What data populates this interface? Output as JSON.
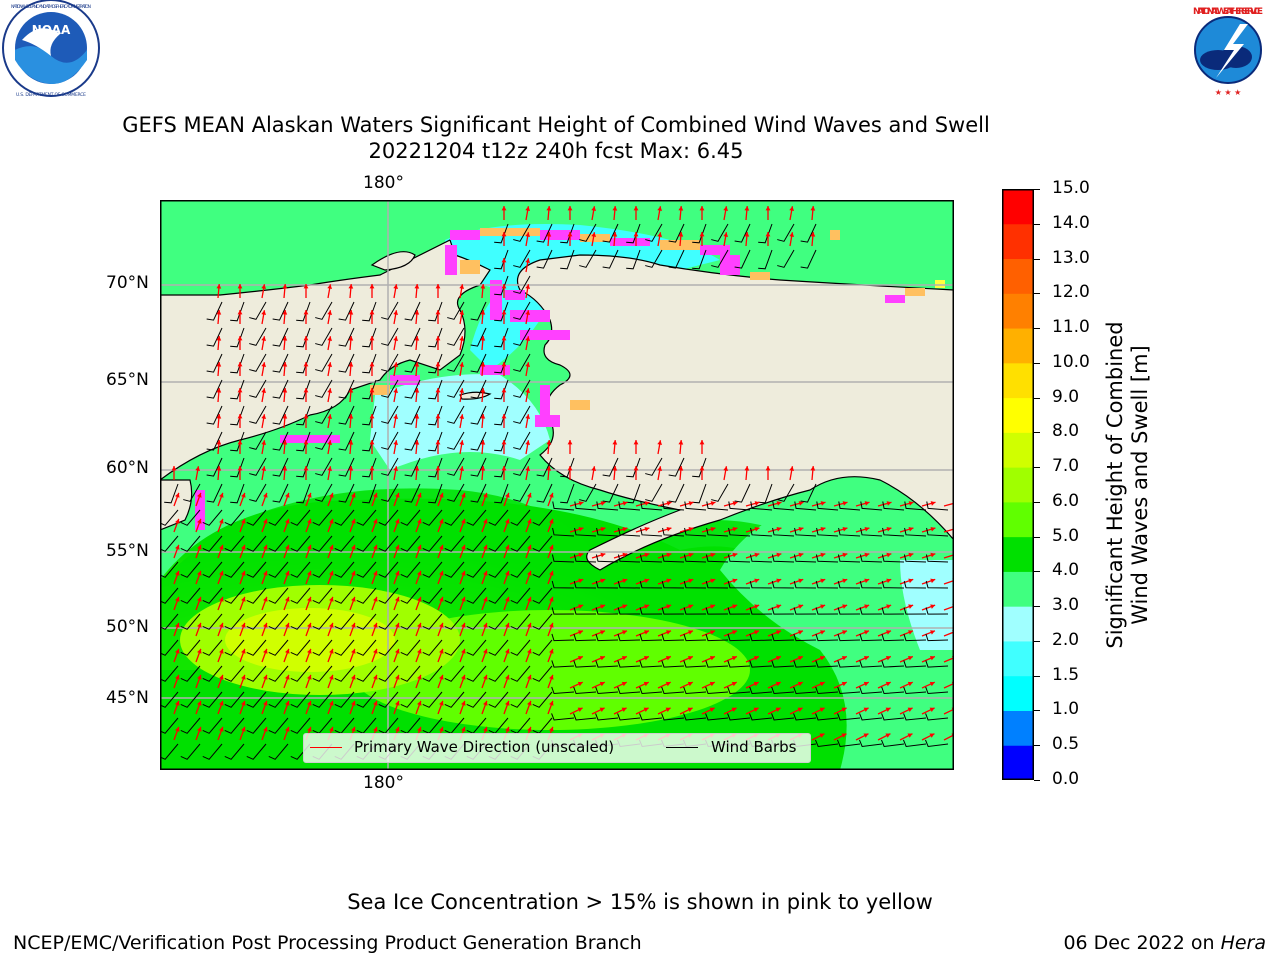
{
  "header": {
    "title_line1": "GEFS MEAN Alaskan Waters Significant Height of Combined Wind Waves and Swell",
    "title_line2": "20221204 t12z 240h fcst   Max: 6.45"
  },
  "logos": {
    "noaa_text": "NOAA",
    "noaa_ring_text": "NATIONAL OCEANIC AND ATMOSPHERIC ADMINISTRATION · U.S. DEPARTMENT OF COMMERCE",
    "nws_ring_text": "NATIONAL WEATHER SERVICE"
  },
  "map": {
    "lon_label_top": "180°",
    "lon_label_bottom": "180°",
    "lat_labels": [
      "70°N",
      "65°N",
      "60°N",
      "55°N",
      "50°N",
      "45°N"
    ],
    "land_color": "#eeecdc",
    "ice_colors": [
      "#ff40ff",
      "#ffc060",
      "#ffff40"
    ]
  },
  "legend": {
    "wave_label": "Primary Wave Direction (unscaled)",
    "wind_label": "Wind Barbs",
    "wave_color": "#ff0000",
    "wind_color": "#000000"
  },
  "colorbar": {
    "label_line1": "Significant Height of Combined",
    "label_line2": "Wind Waves and Swell [m]",
    "ticks": [
      "15.0",
      "14.0",
      "13.0",
      "12.0",
      "11.0",
      "10.0",
      "9.0",
      "8.0",
      "7.0",
      "6.0",
      "5.0",
      "4.0",
      "3.0",
      "2.0",
      "1.5",
      "1.0",
      "0.5",
      "0.0"
    ],
    "colors_bottom_to_top": [
      "#0000ff",
      "#0080ff",
      "#00ffff",
      "#40ffff",
      "#a0ffff",
      "#40ff80",
      "#00e000",
      "#60ff00",
      "#a0ff00",
      "#d0ff00",
      "#ffff00",
      "#ffe000",
      "#ffb000",
      "#ff8000",
      "#ff6000",
      "#ff3000",
      "#ff0000"
    ]
  },
  "chart_data": {
    "type": "heatmap",
    "title": "GEFS MEAN Alaskan Waters Significant Height of Combined Wind Waves and Swell",
    "subtitle": "20221204 t12z 240h fcst   Max: 6.45",
    "max_value": 6.45,
    "units": "m",
    "colorbar_levels": [
      0.0,
      0.5,
      1.0,
      1.5,
      2.0,
      3.0,
      4.0,
      5.0,
      6.0,
      7.0,
      8.0,
      9.0,
      10.0,
      11.0,
      12.0,
      13.0,
      14.0,
      15.0
    ],
    "lat_ticks": [
      "70°N",
      "65°N",
      "60°N",
      "55°N",
      "50°N",
      "45°N"
    ],
    "lon_ticks": [
      "180°"
    ]
  },
  "footer": {
    "ice_note": "Sea Ice Concentration > 15% is shown in pink to yellow",
    "branch": "NCEP/EMC/Verification Post Processing Product Generation Branch",
    "date": "06 Dec 2022 on ",
    "machine": "Hera"
  }
}
